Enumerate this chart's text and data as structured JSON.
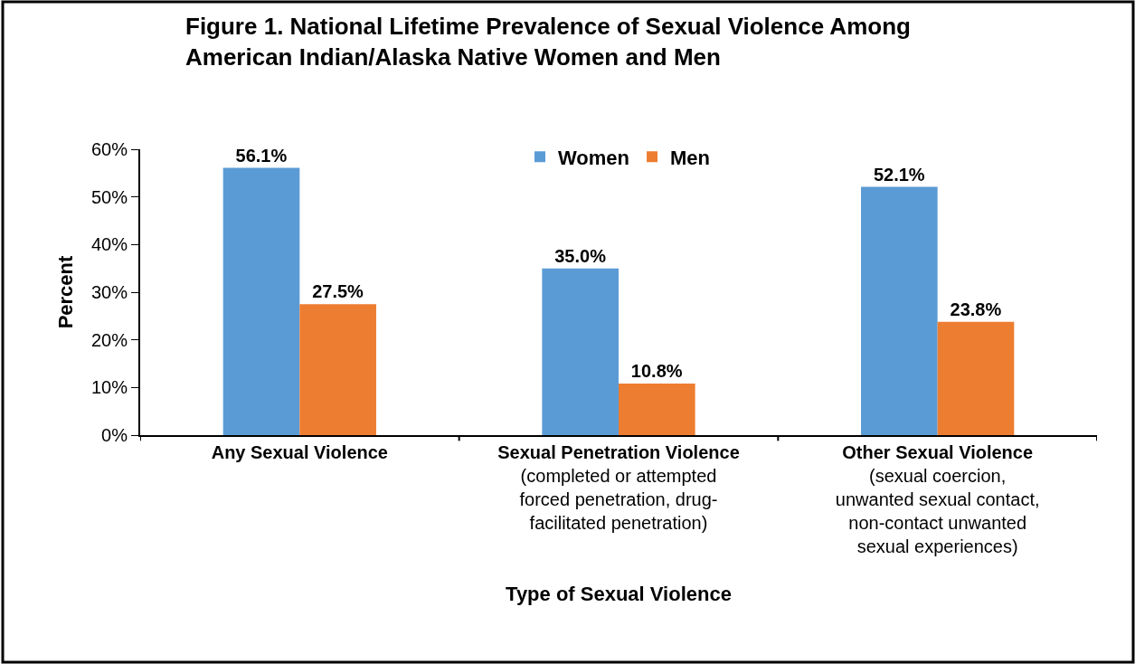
{
  "chart_data": {
    "type": "bar",
    "title": "Figure 1. National Lifetime Prevalence of Sexual Violence Among\nAmerican Indian/Alaska Native Women and Men",
    "xlabel": "Type of Sexual Violence",
    "ylabel": "Percent",
    "categories": [
      "Any Sexual Violence",
      "Sexual Penetration Violence\n(completed or attempted\nforced penetration, drug-\nfacilitated penetration)",
      "Other Sexual Violence\n(sexual coercion,\nunwanted sexual contact,\nnon-contact unwanted\nsexual experiences)"
    ],
    "series": [
      {
        "name": "Women",
        "color": "#5b9bd5",
        "values": [
          56.1,
          35.0,
          52.1
        ],
        "value_labels": [
          "56.1%",
          "35.0%",
          "52.1%"
        ]
      },
      {
        "name": "Men",
        "color": "#ed7d31",
        "values": [
          27.5,
          10.8,
          23.8
        ],
        "value_labels": [
          "27.5%",
          "10.8%",
          "23.8%"
        ]
      }
    ],
    "ylim": [
      0,
      60
    ],
    "yticks": [
      {
        "value": 0,
        "label": "0%"
      },
      {
        "value": 10,
        "label": "10%"
      },
      {
        "value": 20,
        "label": "20%"
      },
      {
        "value": 30,
        "label": "30%"
      },
      {
        "value": 40,
        "label": "40%"
      },
      {
        "value": 50,
        "label": "50%"
      },
      {
        "value": 60,
        "label": "60%"
      }
    ],
    "legend": "top"
  }
}
